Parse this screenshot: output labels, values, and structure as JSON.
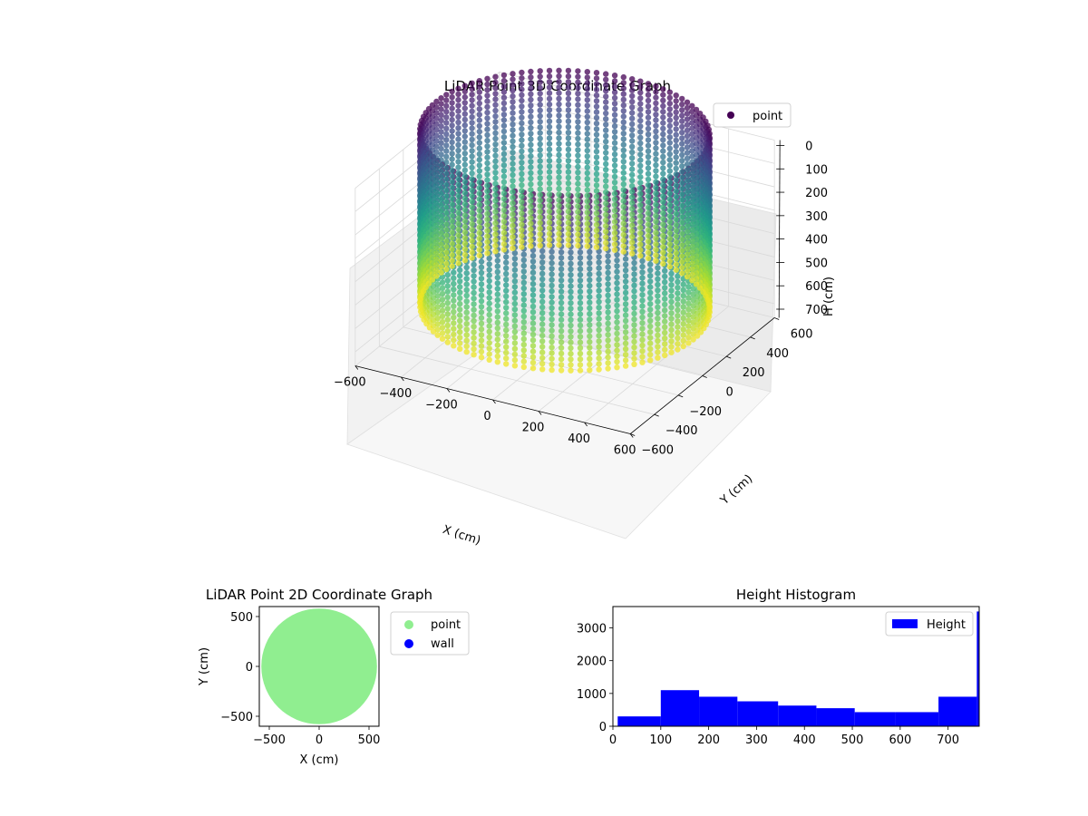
{
  "chart_data": [
    {
      "type": "scatter",
      "title": "LiDAR Point 3D Coordinate Graph",
      "xlabel": "X (cm)",
      "ylabel": "Y (cm)",
      "zlabel": "H (cm)",
      "xlim": [
        -600,
        600
      ],
      "ylim": [
        -600,
        600
      ],
      "zlim": [
        0,
        750
      ],
      "z_inverted": true,
      "x_ticks": [
        "−600",
        "−400",
        "−200",
        "0",
        "200",
        "400",
        "600"
      ],
      "y_ticks": [
        "−600",
        "−400",
        "−200",
        "0",
        "200",
        "400",
        "600"
      ],
      "z_ticks": [
        "0",
        "100",
        "200",
        "300",
        "400",
        "500",
        "600",
        "700"
      ],
      "z_tick_values": [
        0,
        100,
        200,
        300,
        400,
        500,
        600,
        700
      ],
      "legend": [
        "point"
      ],
      "legend_position": "top-right",
      "colormap": "viridis",
      "grid": true,
      "series": [
        {
          "name": "point",
          "color": "#440154",
          "shape": "cylinder",
          "radius": 560,
          "height_range": [
            0,
            760
          ],
          "columns_around": 96
        }
      ]
    },
    {
      "type": "scatter",
      "title": "LiDAR Point 2D Coordinate Graph",
      "xlabel": "X (cm)",
      "ylabel": "Y (cm)",
      "xlim": [
        -600,
        600
      ],
      "ylim": [
        -600,
        600
      ],
      "x_ticks": [
        "−500",
        "0",
        "500"
      ],
      "x_tick_values": [
        -500,
        0,
        500
      ],
      "y_ticks": [
        "500",
        "0",
        "−500"
      ],
      "y_tick_values": [
        500,
        0,
        -500
      ],
      "legend": [
        "point",
        "wall"
      ],
      "legend_position": "outside-right",
      "series": [
        {
          "name": "point",
          "color": "#90ee90",
          "shape": "disk",
          "radius": 580
        },
        {
          "name": "wall",
          "color": "#0000ff",
          "points": []
        }
      ]
    },
    {
      "type": "bar",
      "title": "Height Histogram",
      "xlabel": "",
      "ylabel": "",
      "xlim": [
        0,
        765
      ],
      "ylim": [
        0,
        3650
      ],
      "x_ticks": [
        "0",
        "100",
        "200",
        "300",
        "400",
        "500",
        "600",
        "700"
      ],
      "x_tick_values": [
        0,
        100,
        200,
        300,
        400,
        500,
        600,
        700
      ],
      "y_ticks": [
        "0",
        "1000",
        "2000",
        "3000"
      ],
      "y_tick_values": [
        0,
        1000,
        2000,
        3000
      ],
      "legend": [
        "Height"
      ],
      "legend_position": "top-right",
      "series": [
        {
          "name": "Height",
          "color": "#0000ff",
          "bins": [
            {
              "x0": 10,
              "x1": 100,
              "value": 300
            },
            {
              "x0": 100,
              "x1": 180,
              "value": 1100
            },
            {
              "x0": 180,
              "x1": 260,
              "value": 900
            },
            {
              "x0": 260,
              "x1": 345,
              "value": 760
            },
            {
              "x0": 345,
              "x1": 425,
              "value": 630
            },
            {
              "x0": 425,
              "x1": 505,
              "value": 550
            },
            {
              "x0": 505,
              "x1": 590,
              "value": 430
            },
            {
              "x0": 590,
              "x1": 680,
              "value": 430
            },
            {
              "x0": 680,
              "x1": 760,
              "value": 900
            },
            {
              "x0": 760,
              "x1": 765,
              "value": 3500
            }
          ]
        }
      ]
    }
  ]
}
